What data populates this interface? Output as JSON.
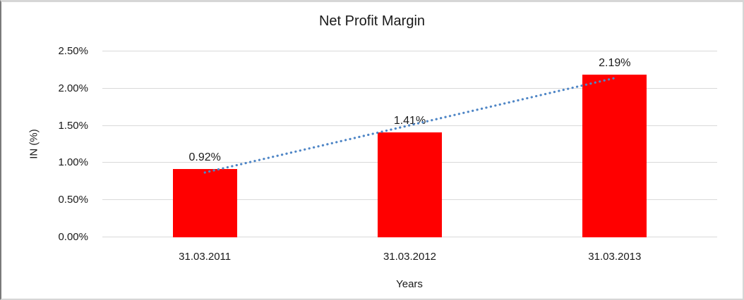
{
  "chart_data": {
    "type": "bar",
    "title": "Net Profit Margin",
    "xlabel": "Years",
    "ylabel": "IN (%)",
    "categories": [
      "31.03.2011",
      "31.03.2012",
      "31.03.2013"
    ],
    "values": [
      0.92,
      1.41,
      2.19
    ],
    "data_labels": [
      "0.92%",
      "1.41%",
      "2.19%"
    ],
    "yticks": [
      "0.00%",
      "0.50%",
      "1.00%",
      "1.50%",
      "2.00%",
      "2.50%"
    ],
    "ylim": [
      0,
      2.5
    ],
    "grid": true,
    "legend_position": "none",
    "bar_color": "#ff0000",
    "trendline": {
      "type": "linear",
      "style": "dotted",
      "color": "#4f86c6"
    },
    "gridline_color": "#d9d9d9"
  }
}
